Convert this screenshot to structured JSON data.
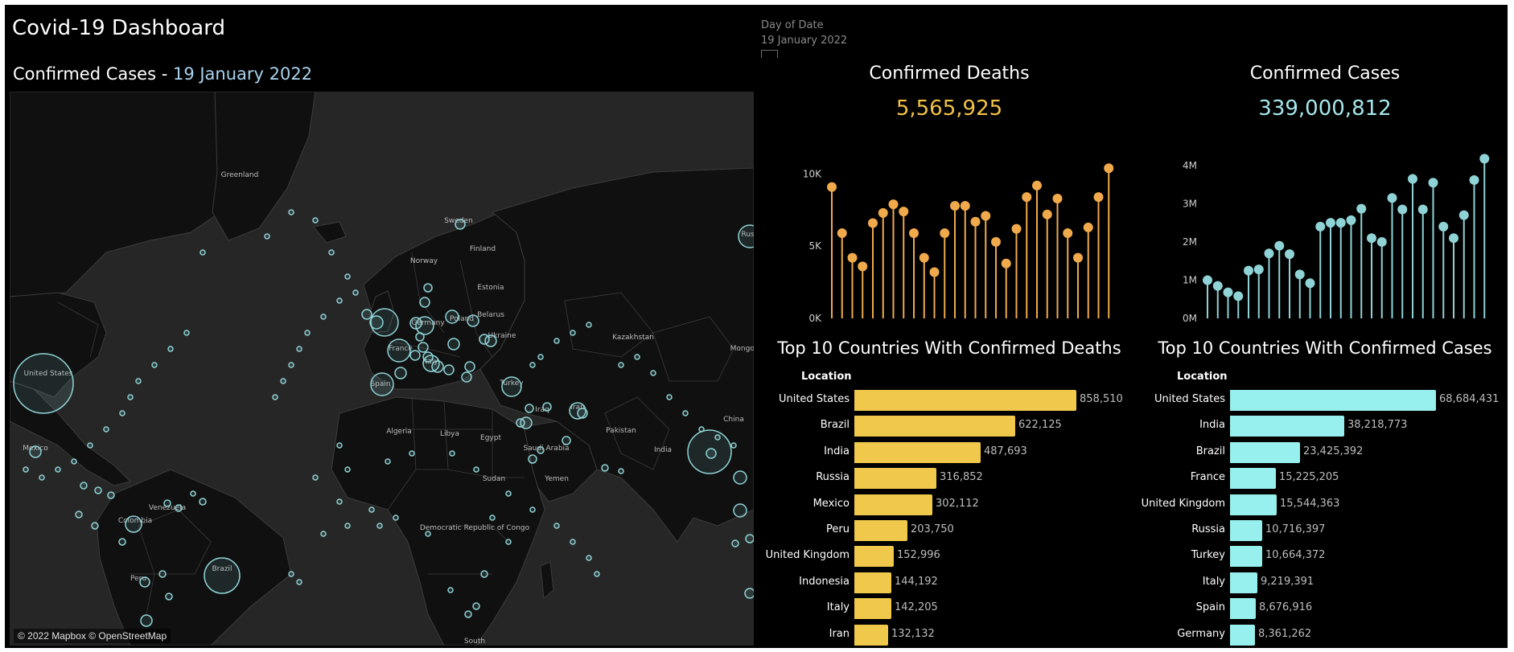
{
  "dashboard": {
    "title": "Covid-19 Dashboard"
  },
  "filter": {
    "label": "Day of Date",
    "value": "19 January 2022"
  },
  "map": {
    "title_prefix": "Confirmed Cases",
    "title_sep": " - ",
    "title_date": "19 January 2022",
    "attribution": "© 2022 Mapbox © OpenStreetMap",
    "marker_color": "#8fd3d6",
    "labels": [
      "Greenland",
      "Sweden",
      "Finland",
      "Norway",
      "Russ",
      "Estonia",
      "Poland",
      "Germany",
      "Belarus",
      "Ukraine",
      "France",
      "Italy",
      "Spain",
      "Turkey",
      "Kazakhstan",
      "Mongol",
      "China",
      "Iraq",
      "Iran",
      "Pakistan",
      "Algeria",
      "Libya",
      "Egypt",
      "Saudi Arabia",
      "India",
      "Sudan",
      "Yemen",
      "United States",
      "Mexico",
      "Venezuela",
      "Colombia",
      "Brazil",
      "Peru",
      "Democratic Republic of Congo",
      "South"
    ]
  },
  "deaths": {
    "title": "Confirmed Deaths",
    "total": "5,565,925",
    "color": "#f0a94b",
    "value_color": "#f2c244",
    "y_ticks": [
      "10K",
      "5K",
      "0K"
    ],
    "y_max": 11250,
    "series": [
      9100,
      5900,
      4200,
      3600,
      6600,
      7300,
      7900,
      7400,
      5900,
      4200,
      3200,
      5900,
      7800,
      7800,
      6700,
      7100,
      5300,
      3800,
      6200,
      8400,
      9200,
      7200,
      8300,
      5900,
      4200,
      6300,
      8400,
      10400
    ]
  },
  "cases": {
    "title": "Confirmed Cases",
    "total": "339,000,812",
    "color": "#8fd3d6",
    "value_color": "#a6e6ea",
    "y_ticks": [
      "4M",
      "3M",
      "2M",
      "1M",
      "0M"
    ],
    "y_max": 4250000,
    "series": [
      1000000,
      850000,
      680000,
      580000,
      1250000,
      1280000,
      1700000,
      1900000,
      1680000,
      1150000,
      920000,
      2400000,
      2500000,
      2500000,
      2570000,
      2870000,
      2100000,
      2000000,
      3150000,
      2850000,
      3650000,
      2850000,
      3550000,
      2400000,
      2100000,
      2700000,
      3620000,
      4180000
    ]
  },
  "top_deaths": {
    "title": "Top 10 Countries With Confirmed Deaths",
    "column_header": "Location",
    "bar_color": "#f0c84b",
    "max": 858510,
    "rows": [
      {
        "location": "United States",
        "value": 858510,
        "label": "858,510"
      },
      {
        "location": "Brazil",
        "value": 622125,
        "label": "622,125"
      },
      {
        "location": "India",
        "value": 487693,
        "label": "487,693"
      },
      {
        "location": "Russia",
        "value": 316852,
        "label": "316,852"
      },
      {
        "location": "Mexico",
        "value": 302112,
        "label": "302,112"
      },
      {
        "location": "Peru",
        "value": 203750,
        "label": "203,750"
      },
      {
        "location": "United Kingdom",
        "value": 152996,
        "label": "152,996"
      },
      {
        "location": "Indonesia",
        "value": 144192,
        "label": "144,192"
      },
      {
        "location": "Italy",
        "value": 142205,
        "label": "142,205"
      },
      {
        "location": "Iran",
        "value": 132132,
        "label": "132,132"
      }
    ]
  },
  "top_cases": {
    "title": "Top 10 Countries With Confirmed Cases",
    "column_header": "Location",
    "bar_color": "#98f0ee",
    "max": 68684431,
    "rows": [
      {
        "location": "United States",
        "value": 68684431,
        "label": "68,684,431"
      },
      {
        "location": "India",
        "value": 38218773,
        "label": "38,218,773"
      },
      {
        "location": "Brazil",
        "value": 23425392,
        "label": "23,425,392"
      },
      {
        "location": "France",
        "value": 15225205,
        "label": "15,225,205"
      },
      {
        "location": "United Kingdom",
        "value": 15544363,
        "label": "15,544,363"
      },
      {
        "location": "Russia",
        "value": 10716397,
        "label": "10,716,397"
      },
      {
        "location": "Turkey",
        "value": 10664372,
        "label": "10,664,372"
      },
      {
        "location": "Italy",
        "value": 9219391,
        "label": "9,219,391"
      },
      {
        "location": "Spain",
        "value": 8676916,
        "label": "8,676,916"
      },
      {
        "location": "Germany",
        "value": 8361262,
        "label": "8,361,262"
      }
    ]
  }
}
